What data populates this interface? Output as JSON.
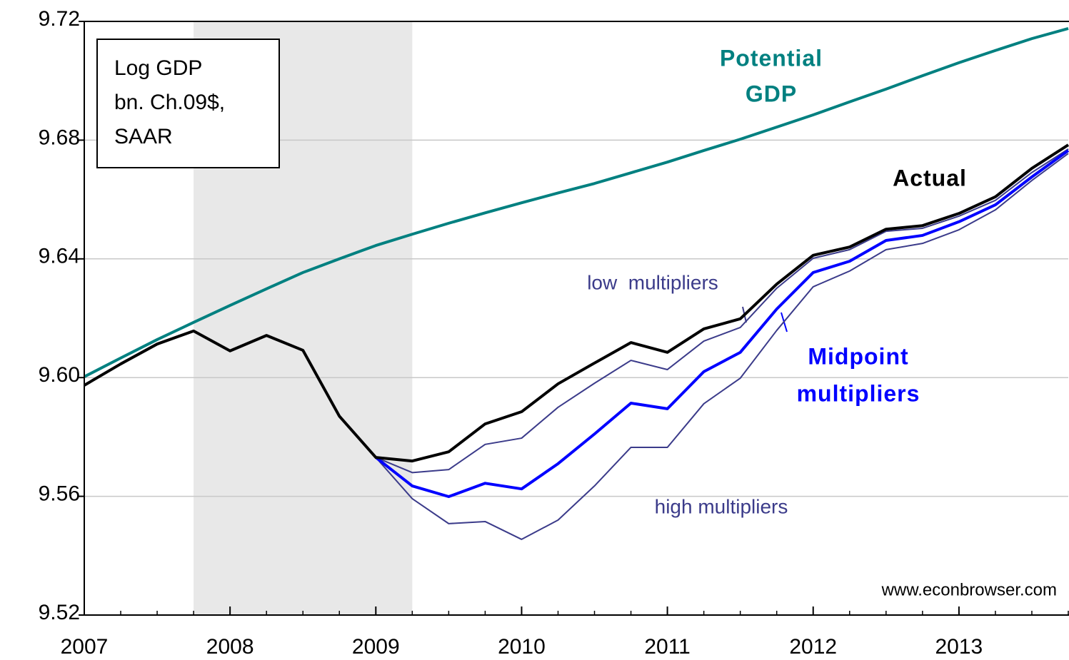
{
  "chart_data": {
    "type": "line",
    "x": [
      2007,
      2007.25,
      2007.5,
      2007.75,
      2008,
      2008.25,
      2008.5,
      2008.75,
      2009,
      2009.25,
      2009.5,
      2009.75,
      2010,
      2010.25,
      2010.5,
      2010.75,
      2011,
      2011.25,
      2011.5,
      2011.75,
      2012,
      2012.25,
      2012.5,
      2012.75,
      2013,
      2013.25,
      2013.5,
      2013.75
    ],
    "series": [
      {
        "name": "Potential GDP",
        "color": "#008080",
        "width": 4,
        "values": [
          9.6003,
          9.6066,
          9.6128,
          9.6186,
          9.6243,
          9.6299,
          9.6354,
          9.64,
          9.6445,
          9.6483,
          9.652,
          9.6555,
          9.6589,
          9.6622,
          9.6654,
          9.669,
          9.6726,
          9.6765,
          9.6803,
          9.6844,
          9.6885,
          9.6929,
          9.6972,
          9.7017,
          9.7061,
          9.7102,
          9.7142,
          9.7176
        ]
      },
      {
        "name": "high multipliers",
        "color": "#3b3b8a",
        "width": 2,
        "values": [
          null,
          null,
          null,
          null,
          null,
          null,
          null,
          null,
          9.5731,
          9.5592,
          9.5508,
          9.5515,
          9.5455,
          9.552,
          9.5635,
          9.5765,
          9.5765,
          9.5912,
          9.5998,
          9.6159,
          9.6306,
          9.6359,
          9.6431,
          9.6452,
          9.6498,
          9.6565,
          9.6664,
          9.6755
        ]
      },
      {
        "name": "low multipliers",
        "color": "#3b3b8a",
        "width": 2,
        "values": [
          null,
          null,
          null,
          null,
          null,
          null,
          null,
          null,
          9.5731,
          9.568,
          9.569,
          9.5775,
          9.5796,
          9.59,
          9.5981,
          9.6058,
          9.6027,
          9.6123,
          9.6169,
          9.6301,
          9.6402,
          9.6431,
          9.6493,
          9.6503,
          9.6544,
          9.6597,
          9.6691,
          9.677
        ]
      },
      {
        "name": "Midpoint multipliers",
        "color": "#0000ff",
        "width": 4,
        "values": [
          null,
          null,
          null,
          null,
          null,
          null,
          null,
          null,
          9.5731,
          9.5635,
          9.5599,
          9.5644,
          9.5625,
          9.571,
          9.581,
          9.5914,
          9.5895,
          9.602,
          9.6085,
          9.6231,
          9.6354,
          9.6392,
          9.6462,
          9.6479,
          9.6525,
          9.6582,
          9.6676,
          9.6765
        ]
      },
      {
        "name": "Actual",
        "color": "#000000",
        "width": 4,
        "values": [
          9.5974,
          9.6046,
          9.6113,
          9.6157,
          9.609,
          9.6142,
          9.6092,
          9.587,
          9.5731,
          9.5719,
          9.575,
          9.5844,
          9.5885,
          9.5979,
          9.6049,
          9.6118,
          9.6085,
          9.6164,
          9.6198,
          9.6315,
          9.6412,
          9.644,
          9.65,
          9.6512,
          9.6553,
          9.6609,
          9.6705,
          9.6784
        ]
      }
    ],
    "recessions": [
      [
        2007.75,
        2009.25
      ]
    ],
    "xlim": [
      2007,
      2013.75
    ],
    "xticks": [
      2007,
      2008,
      2009,
      2010,
      2011,
      2012,
      2013
    ],
    "ylim": [
      9.52,
      9.72
    ],
    "yticks": [
      9.52,
      9.56,
      {
        "value": 9.6,
        "label": "9.60"
      },
      9.64,
      9.68,
      9.72
    ],
    "grid": true,
    "annotations": [
      {
        "lines": [
          "Log GDP",
          "bn. Ch.09$,",
          "SAAR"
        ]
      },
      {
        "lines": [
          "Potential",
          "GDP"
        ],
        "color": "#008080",
        "bold": true
      },
      {
        "lines": [
          "Actual"
        ],
        "color": "#000000",
        "bold": true
      },
      {
        "lines": [
          "low  multipliers"
        ],
        "color": "#3b3b8a"
      },
      {
        "lines": [
          "Midpoint",
          "multipliers"
        ],
        "color": "#0000ff",
        "bold": true
      },
      {
        "lines": [
          "high multipliers"
        ],
        "color": "#3b3b8a"
      },
      {
        "lines": [
          "www.econbrowser.com"
        ],
        "color": "#000000"
      }
    ]
  }
}
